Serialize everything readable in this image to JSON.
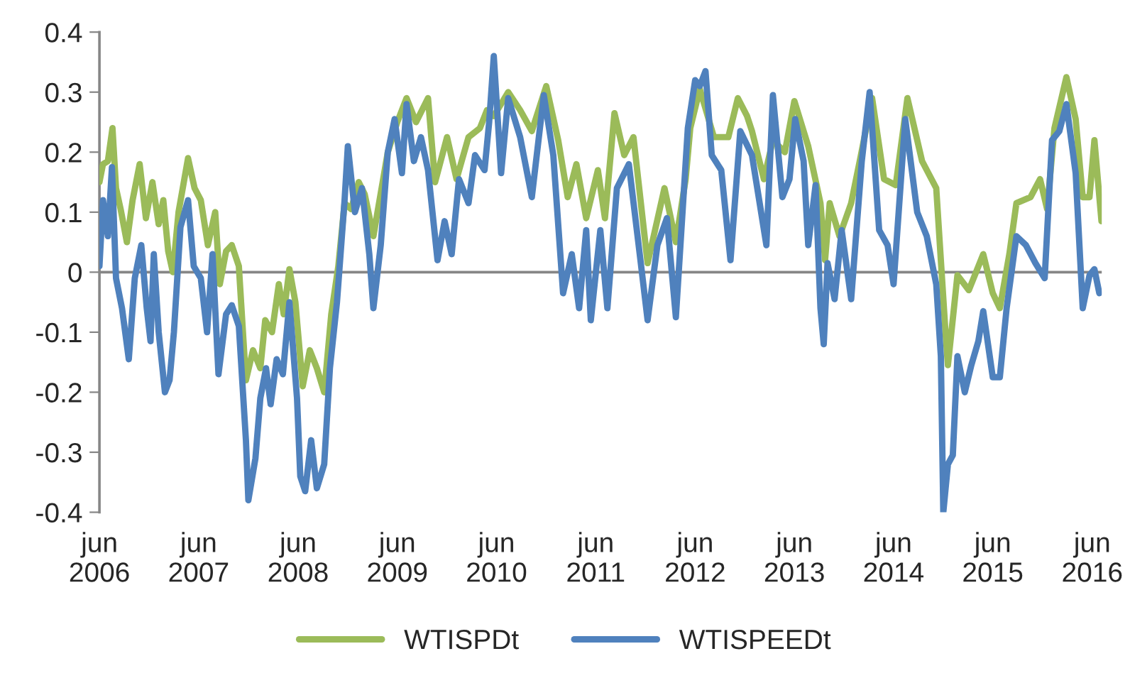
{
  "chart_data": {
    "type": "line",
    "xlim": [
      "2006-06-01",
      "2016-07-06"
    ],
    "xticks": [
      {
        "value": "2006-06-01",
        "label": "jun\n2006"
      },
      {
        "value": "2007-06-01",
        "label": "jun\n2007"
      },
      {
        "value": "2008-06-01",
        "label": "jun\n2008"
      },
      {
        "value": "2009-06-01",
        "label": "jun\n2009"
      },
      {
        "value": "2010-06-01",
        "label": "jun\n2010"
      },
      {
        "value": "2011-06-01",
        "label": "jun\n2011"
      },
      {
        "value": "2012-06-01",
        "label": "jun\n2012"
      },
      {
        "value": "2013-06-01",
        "label": "jun\n2013"
      },
      {
        "value": "2014-06-01",
        "label": "jun\n2014"
      },
      {
        "value": "2015-06-01",
        "label": "jun\n2015"
      },
      {
        "value": "2016-06-01",
        "label": "jun\n2016"
      }
    ],
    "ylim": [
      -0.4,
      0.4
    ],
    "yticks": [
      -0.4,
      -0.3,
      -0.2,
      -0.1,
      0,
      0.1,
      0.2,
      0.3,
      0.4
    ],
    "grid": false,
    "legend": "bottom",
    "marker": "none",
    "line_style": "solid",
    "ref_lines": [
      {
        "axis": "y",
        "value": 0,
        "color": "#868686"
      }
    ],
    "series": [
      {
        "name": "WTISPDt",
        "color": "#9bbb59",
        "x": [
          "2006-06-01",
          "2006-06-14",
          "2006-07-02",
          "2006-07-19",
          "2006-08-01",
          "2006-08-18",
          "2006-09-10",
          "2006-10-01",
          "2006-10-27",
          "2006-11-19",
          "2006-12-13",
          "2007-01-05",
          "2007-01-22",
          "2007-02-09",
          "2007-02-26",
          "2007-03-19",
          "2007-04-23",
          "2007-05-17",
          "2007-06-09",
          "2007-07-05",
          "2007-08-01",
          "2007-08-18",
          "2007-09-10",
          "2007-10-01",
          "2007-10-27",
          "2007-11-22",
          "2007-12-18",
          "2008-01-14",
          "2008-02-01",
          "2008-02-26",
          "2008-03-22",
          "2008-04-09",
          "2008-04-30",
          "2008-05-22",
          "2008-06-18",
          "2008-07-14",
          "2008-08-09",
          "2008-09-05",
          "2008-10-01",
          "2008-10-27",
          "2008-11-19",
          "2008-12-13",
          "2009-01-10",
          "2009-02-01",
          "2009-03-05",
          "2009-03-22",
          "2009-04-27",
          "2009-06-01",
          "2009-07-05",
          "2009-08-09",
          "2009-09-22",
          "2009-10-18",
          "2009-12-01",
          "2010-01-05",
          "2010-02-18",
          "2010-04-01",
          "2010-04-27",
          "2010-05-22",
          "2010-07-14",
          "2010-08-27",
          "2010-10-09",
          "2010-12-01",
          "2011-01-14",
          "2011-02-18",
          "2011-03-22",
          "2011-04-27",
          "2011-06-09",
          "2011-07-05",
          "2011-08-09",
          "2011-09-14",
          "2011-10-18",
          "2011-12-09",
          "2012-02-09",
          "2012-03-22",
          "2012-04-27",
          "2012-05-14",
          "2012-06-18",
          "2012-08-09",
          "2012-10-01",
          "2012-11-05",
          "2012-12-09",
          "2012-12-27",
          "2013-02-09",
          "2013-03-14",
          "2013-04-27",
          "2013-06-01",
          "2013-07-22",
          "2013-09-05",
          "2013-09-22",
          "2013-10-09",
          "2013-11-14",
          "2013-12-27",
          "2014-02-01",
          "2014-03-14",
          "2014-04-27",
          "2014-06-09",
          "2014-07-22",
          "2014-09-14",
          "2014-11-05",
          "2014-12-09",
          "2014-12-18",
          "2015-01-22",
          "2015-03-05",
          "2015-04-27",
          "2015-06-01",
          "2015-06-27",
          "2015-08-01",
          "2015-08-27",
          "2015-10-18",
          "2015-11-22",
          "2015-12-18",
          "2016-01-14",
          "2016-02-27",
          "2016-04-01",
          "2016-04-27",
          "2016-05-22",
          "2016-06-09",
          "2016-07-05"
        ],
        "values": [
          0.15,
          0.18,
          0.185,
          0.24,
          0.14,
          0.105,
          0.05,
          0.12,
          0.18,
          0.09,
          0.15,
          0.08,
          0.12,
          0.035,
          0.0,
          0.1,
          0.19,
          0.14,
          0.12,
          0.045,
          0.1,
          -0.02,
          0.035,
          0.045,
          0.01,
          -0.18,
          -0.13,
          -0.16,
          -0.08,
          -0.1,
          -0.02,
          -0.07,
          0.005,
          -0.05,
          -0.19,
          -0.13,
          -0.16,
          -0.2,
          -0.07,
          0.01,
          0.115,
          0.105,
          0.15,
          0.13,
          0.06,
          0.105,
          0.2,
          0.25,
          0.29,
          0.25,
          0.29,
          0.15,
          0.225,
          0.155,
          0.225,
          0.24,
          0.27,
          0.26,
          0.3,
          0.27,
          0.235,
          0.31,
          0.22,
          0.125,
          0.18,
          0.09,
          0.17,
          0.09,
          0.265,
          0.195,
          0.225,
          0.015,
          0.14,
          0.05,
          0.155,
          0.24,
          0.305,
          0.225,
          0.225,
          0.29,
          0.26,
          0.235,
          0.155,
          0.22,
          0.2,
          0.285,
          0.21,
          0.115,
          0.02,
          0.115,
          0.06,
          0.115,
          0.195,
          0.29,
          0.155,
          0.145,
          0.29,
          0.185,
          0.14,
          -0.1,
          -0.155,
          -0.005,
          -0.03,
          0.03,
          -0.035,
          -0.06,
          0.03,
          0.115,
          0.125,
          0.155,
          0.105,
          0.24,
          0.325,
          0.255,
          0.125,
          0.125,
          0.22,
          0.085
        ]
      },
      {
        "name": "WTISPEEDt",
        "color": "#4f81bd",
        "x": [
          "2006-06-01",
          "2006-06-14",
          "2006-07-02",
          "2006-07-17",
          "2006-08-01",
          "2006-08-23",
          "2006-09-17",
          "2006-10-09",
          "2006-11-02",
          "2006-11-22",
          "2006-12-06",
          "2006-12-18",
          "2007-01-05",
          "2007-01-28",
          "2007-02-14",
          "2007-03-02",
          "2007-03-26",
          "2007-04-23",
          "2007-05-14",
          "2007-06-09",
          "2007-07-02",
          "2007-07-22",
          "2007-08-13",
          "2007-09-10",
          "2007-10-01",
          "2007-10-27",
          "2007-11-22",
          "2007-12-01",
          "2007-12-27",
          "2008-01-14",
          "2008-02-04",
          "2008-02-21",
          "2008-03-14",
          "2008-04-06",
          "2008-04-30",
          "2008-05-28",
          "2008-06-09",
          "2008-06-27",
          "2008-07-19",
          "2008-08-09",
          "2008-09-05",
          "2008-09-26",
          "2008-10-22",
          "2008-11-19",
          "2008-12-01",
          "2008-12-27",
          "2009-01-22",
          "2009-02-18",
          "2009-03-05",
          "2009-04-01",
          "2009-04-27",
          "2009-05-22",
          "2009-06-18",
          "2009-07-05",
          "2009-08-01",
          "2009-08-27",
          "2009-09-22",
          "2009-10-27",
          "2009-11-22",
          "2009-12-18",
          "2010-01-14",
          "2010-02-18",
          "2010-03-14",
          "2010-04-18",
          "2010-05-05",
          "2010-05-22",
          "2010-06-18",
          "2010-07-14",
          "2010-08-27",
          "2010-10-09",
          "2010-11-22",
          "2010-12-27",
          "2011-02-01",
          "2011-03-05",
          "2011-04-01",
          "2011-04-27",
          "2011-05-14",
          "2011-06-18",
          "2011-07-14",
          "2011-08-18",
          "2011-10-01",
          "2011-11-14",
          "2011-12-09",
          "2012-01-14",
          "2012-02-18",
          "2012-03-22",
          "2012-05-05",
          "2012-06-01",
          "2012-06-18",
          "2012-07-09",
          "2012-08-01",
          "2012-09-05",
          "2012-10-09",
          "2012-11-14",
          "2012-12-27",
          "2013-02-18",
          "2013-03-14",
          "2013-04-18",
          "2013-05-14",
          "2013-06-04",
          "2013-07-05",
          "2013-07-22",
          "2013-08-18",
          "2013-09-05",
          "2013-09-17",
          "2013-10-01",
          "2013-10-27",
          "2013-11-22",
          "2013-12-27",
          "2014-02-04",
          "2014-03-05",
          "2014-04-09",
          "2014-05-10",
          "2014-06-01",
          "2014-07-14",
          "2014-08-27",
          "2014-10-01",
          "2014-11-05",
          "2014-11-22",
          "2014-12-01",
          "2014-12-18",
          "2015-01-05",
          "2015-01-22",
          "2015-02-18",
          "2015-03-14",
          "2015-04-09",
          "2015-04-27",
          "2015-06-01",
          "2015-06-27",
          "2015-07-22",
          "2015-08-27",
          "2015-10-01",
          "2015-11-05",
          "2015-12-09",
          "2016-01-05",
          "2016-02-01",
          "2016-02-27",
          "2016-04-01",
          "2016-04-27",
          "2016-05-22",
          "2016-06-09",
          "2016-06-27"
        ],
        "values": [
          0.01,
          0.12,
          0.06,
          0.175,
          -0.01,
          -0.06,
          -0.145,
          -0.01,
          0.045,
          -0.06,
          -0.115,
          0.03,
          -0.1,
          -0.2,
          -0.18,
          -0.1,
          0.075,
          0.12,
          0.01,
          -0.01,
          -0.1,
          0.03,
          -0.17,
          -0.07,
          -0.055,
          -0.09,
          -0.28,
          -0.38,
          -0.31,
          -0.21,
          -0.16,
          -0.22,
          -0.145,
          -0.17,
          -0.05,
          -0.21,
          -0.34,
          -0.365,
          -0.28,
          -0.36,
          -0.32,
          -0.16,
          -0.05,
          0.12,
          0.21,
          0.1,
          0.14,
          0.03,
          -0.06,
          0.045,
          0.2,
          0.255,
          0.165,
          0.28,
          0.185,
          0.225,
          0.17,
          0.02,
          0.085,
          0.03,
          0.155,
          0.115,
          0.195,
          0.17,
          0.25,
          0.36,
          0.165,
          0.29,
          0.225,
          0.125,
          0.295,
          0.195,
          -0.035,
          0.03,
          -0.06,
          0.07,
          -0.08,
          0.07,
          -0.06,
          0.14,
          0.18,
          0.015,
          -0.08,
          0.045,
          0.09,
          -0.075,
          0.24,
          0.32,
          0.31,
          0.335,
          0.195,
          0.17,
          0.02,
          0.235,
          0.195,
          0.045,
          0.295,
          0.125,
          0.155,
          0.255,
          0.185,
          0.045,
          0.145,
          -0.06,
          -0.12,
          0.015,
          -0.045,
          0.07,
          -0.045,
          0.185,
          0.3,
          0.07,
          0.045,
          -0.02,
          0.255,
          0.1,
          0.06,
          -0.02,
          -0.14,
          -0.4,
          -0.32,
          -0.305,
          -0.14,
          -0.2,
          -0.155,
          -0.115,
          -0.065,
          -0.175,
          -0.175,
          -0.06,
          0.06,
          0.045,
          0.015,
          -0.01,
          0.22,
          0.235,
          0.28,
          0.165,
          -0.06,
          -0.005,
          0.005,
          -0.035
        ]
      }
    ]
  }
}
